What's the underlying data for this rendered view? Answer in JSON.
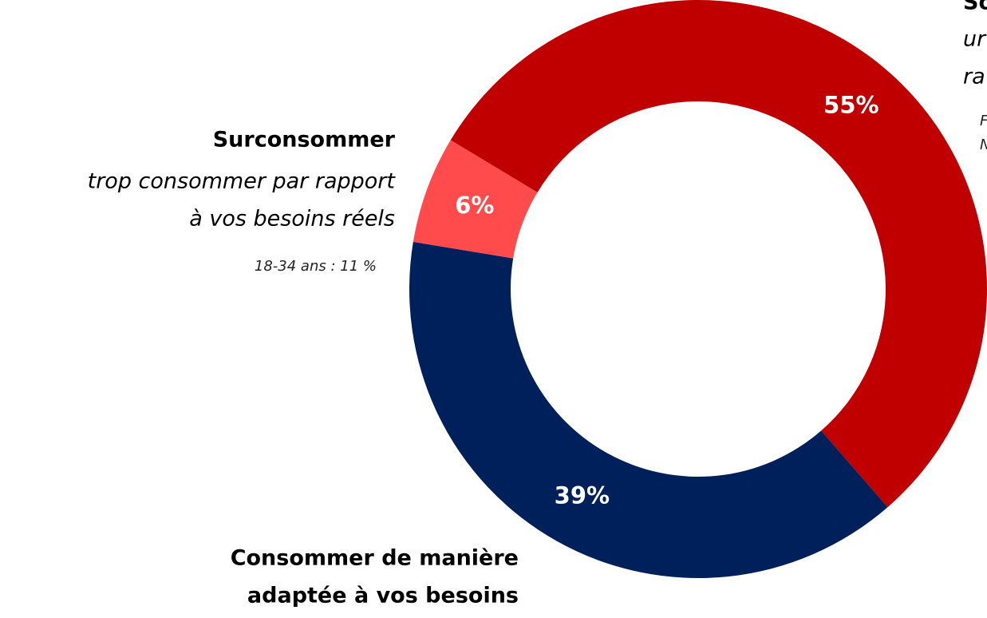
{
  "chart_data": {
    "type": "donut",
    "values": [
      55,
      39,
      6
    ],
    "value_labels": [
      "55%",
      "39%",
      "6%"
    ],
    "colors": [
      "#c00000",
      "#00205b",
      "#ff4b4b"
    ],
    "labels": [
      {
        "title_lines": [
          "So"
        ],
        "lines": [
          "ur",
          "ra"
        ],
        "note_lines": [
          "F",
          "N"
        ]
      },
      {
        "title_lines": [
          "Consommer de manière",
          "adaptée à vos besoins"
        ]
      },
      {
        "title_lines": [
          "Surconsommer"
        ],
        "lines": [
          "trop consommer par rapport",
          "à vos besoins réels"
        ],
        "note_lines": [
          "18-34 ans : 11 %"
        ]
      }
    ]
  }
}
